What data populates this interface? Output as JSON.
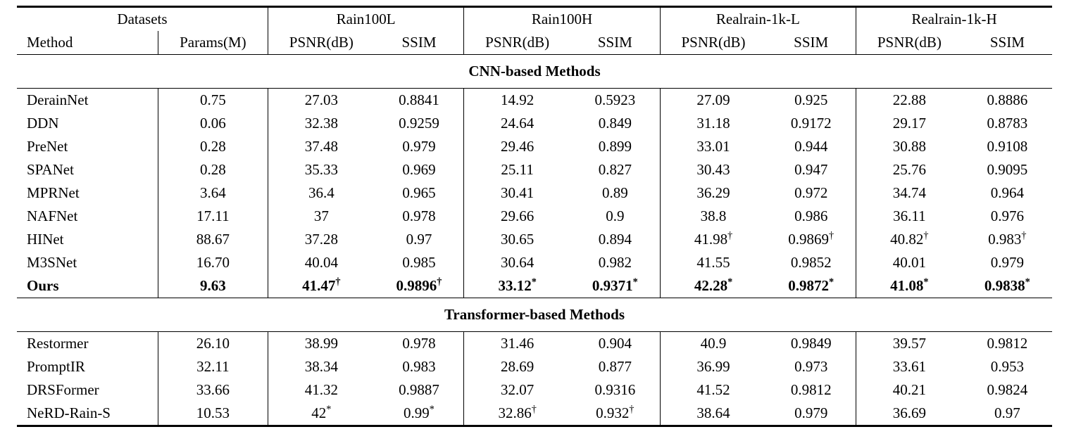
{
  "page": {
    "background": "#ffffff",
    "text_color": "#000000"
  },
  "table": {
    "group_headers": [
      {
        "label": "Datasets",
        "span": 2
      },
      {
        "label": "Rain100L",
        "span": 2
      },
      {
        "label": "Rain100H",
        "span": 2
      },
      {
        "label": "Realrain-1k-L",
        "span": 2
      },
      {
        "label": "Realrain-1k-H",
        "span": 2
      }
    ],
    "sub_headers": [
      "Method",
      "Params(M)",
      "PSNR(dB)",
      "SSIM",
      "PSNR(dB)",
      "SSIM",
      "PSNR(dB)",
      "SSIM",
      "PSNR(dB)",
      "SSIM"
    ],
    "sections": [
      {
        "title": "CNN-based Methods",
        "rows": [
          {
            "method": "DerainNet",
            "bold": false,
            "cells": [
              {
                "v": "0.75"
              },
              {
                "v": "27.03"
              },
              {
                "v": "0.8841"
              },
              {
                "v": "14.92"
              },
              {
                "v": "0.5923"
              },
              {
                "v": "27.09"
              },
              {
                "v": "0.925"
              },
              {
                "v": "22.88"
              },
              {
                "v": "0.8886"
              }
            ]
          },
          {
            "method": "DDN",
            "bold": false,
            "cells": [
              {
                "v": "0.06"
              },
              {
                "v": "32.38"
              },
              {
                "v": "0.9259"
              },
              {
                "v": "24.64"
              },
              {
                "v": "0.849"
              },
              {
                "v": "31.18"
              },
              {
                "v": "0.9172"
              },
              {
                "v": "29.17"
              },
              {
                "v": "0.8783"
              }
            ]
          },
          {
            "method": "PreNet",
            "bold": false,
            "cells": [
              {
                "v": "0.28"
              },
              {
                "v": "37.48"
              },
              {
                "v": "0.979"
              },
              {
                "v": "29.46"
              },
              {
                "v": "0.899"
              },
              {
                "v": "33.01"
              },
              {
                "v": "0.944"
              },
              {
                "v": "30.88"
              },
              {
                "v": "0.9108"
              }
            ]
          },
          {
            "method": "SPANet",
            "bold": false,
            "cells": [
              {
                "v": "0.28"
              },
              {
                "v": "35.33"
              },
              {
                "v": "0.969"
              },
              {
                "v": "25.11"
              },
              {
                "v": "0.827"
              },
              {
                "v": "30.43"
              },
              {
                "v": "0.947"
              },
              {
                "v": "25.76"
              },
              {
                "v": "0.9095"
              }
            ]
          },
          {
            "method": "MPRNet",
            "bold": false,
            "cells": [
              {
                "v": "3.64"
              },
              {
                "v": "36.4"
              },
              {
                "v": "0.965"
              },
              {
                "v": "30.41"
              },
              {
                "v": "0.89"
              },
              {
                "v": "36.29"
              },
              {
                "v": "0.972"
              },
              {
                "v": "34.74"
              },
              {
                "v": "0.964"
              }
            ]
          },
          {
            "method": "NAFNet",
            "bold": false,
            "cells": [
              {
                "v": "17.11"
              },
              {
                "v": "37"
              },
              {
                "v": "0.978"
              },
              {
                "v": "29.66"
              },
              {
                "v": "0.9"
              },
              {
                "v": "38.8"
              },
              {
                "v": "0.986"
              },
              {
                "v": "36.11"
              },
              {
                "v": "0.976"
              }
            ]
          },
          {
            "method": "HINet",
            "bold": false,
            "cells": [
              {
                "v": "88.67"
              },
              {
                "v": "37.28"
              },
              {
                "v": "0.97"
              },
              {
                "v": "30.65"
              },
              {
                "v": "0.894"
              },
              {
                "v": "41.98",
                "sup": "†"
              },
              {
                "v": "0.9869",
                "sup": "†"
              },
              {
                "v": "40.82",
                "sup": "†"
              },
              {
                "v": "0.983",
                "sup": "†"
              }
            ]
          },
          {
            "method": "M3SNet",
            "bold": false,
            "cells": [
              {
                "v": "16.70"
              },
              {
                "v": "40.04"
              },
              {
                "v": "0.985"
              },
              {
                "v": "30.64"
              },
              {
                "v": "0.982"
              },
              {
                "v": "41.55"
              },
              {
                "v": "0.9852"
              },
              {
                "v": "40.01"
              },
              {
                "v": "0.979"
              }
            ]
          },
          {
            "method": "Ours",
            "bold": true,
            "cells": [
              {
                "v": "9.63"
              },
              {
                "v": "41.47",
                "sup": "†"
              },
              {
                "v": "0.9896",
                "sup": "†"
              },
              {
                "v": "33.12",
                "sup": "*"
              },
              {
                "v": "0.9371",
                "sup": "*"
              },
              {
                "v": "42.28",
                "sup": "*"
              },
              {
                "v": "0.9872",
                "sup": "*"
              },
              {
                "v": "41.08",
                "sup": "*"
              },
              {
                "v": "0.9838",
                "sup": "*"
              }
            ]
          }
        ]
      },
      {
        "title": "Transformer-based Methods",
        "rows": [
          {
            "method": "Restormer",
            "bold": false,
            "cells": [
              {
                "v": "26.10"
              },
              {
                "v": "38.99"
              },
              {
                "v": "0.978"
              },
              {
                "v": "31.46"
              },
              {
                "v": "0.904"
              },
              {
                "v": "40.9"
              },
              {
                "v": "0.9849"
              },
              {
                "v": "39.57"
              },
              {
                "v": "0.9812"
              }
            ]
          },
          {
            "method": "PromptIR",
            "bold": false,
            "cells": [
              {
                "v": "32.11"
              },
              {
                "v": "38.34"
              },
              {
                "v": "0.983"
              },
              {
                "v": "28.69"
              },
              {
                "v": "0.877"
              },
              {
                "v": "36.99"
              },
              {
                "v": "0.973"
              },
              {
                "v": "33.61"
              },
              {
                "v": "0.953"
              }
            ]
          },
          {
            "method": "DRSFormer",
            "bold": false,
            "cells": [
              {
                "v": "33.66"
              },
              {
                "v": "41.32"
              },
              {
                "v": "0.9887"
              },
              {
                "v": "32.07"
              },
              {
                "v": "0.9316"
              },
              {
                "v": "41.52"
              },
              {
                "v": "0.9812"
              },
              {
                "v": "40.21"
              },
              {
                "v": "0.9824"
              }
            ]
          },
          {
            "method": "NeRD-Rain-S",
            "bold": false,
            "cells": [
              {
                "v": "10.53"
              },
              {
                "v": "42",
                "sup": "*"
              },
              {
                "v": "0.99",
                "sup": "*"
              },
              {
                "v": "32.86",
                "sup": "†"
              },
              {
                "v": "0.932",
                "sup": "†"
              },
              {
                "v": "38.64"
              },
              {
                "v": "0.979"
              },
              {
                "v": "36.69"
              },
              {
                "v": "0.97"
              }
            ]
          }
        ]
      }
    ]
  }
}
